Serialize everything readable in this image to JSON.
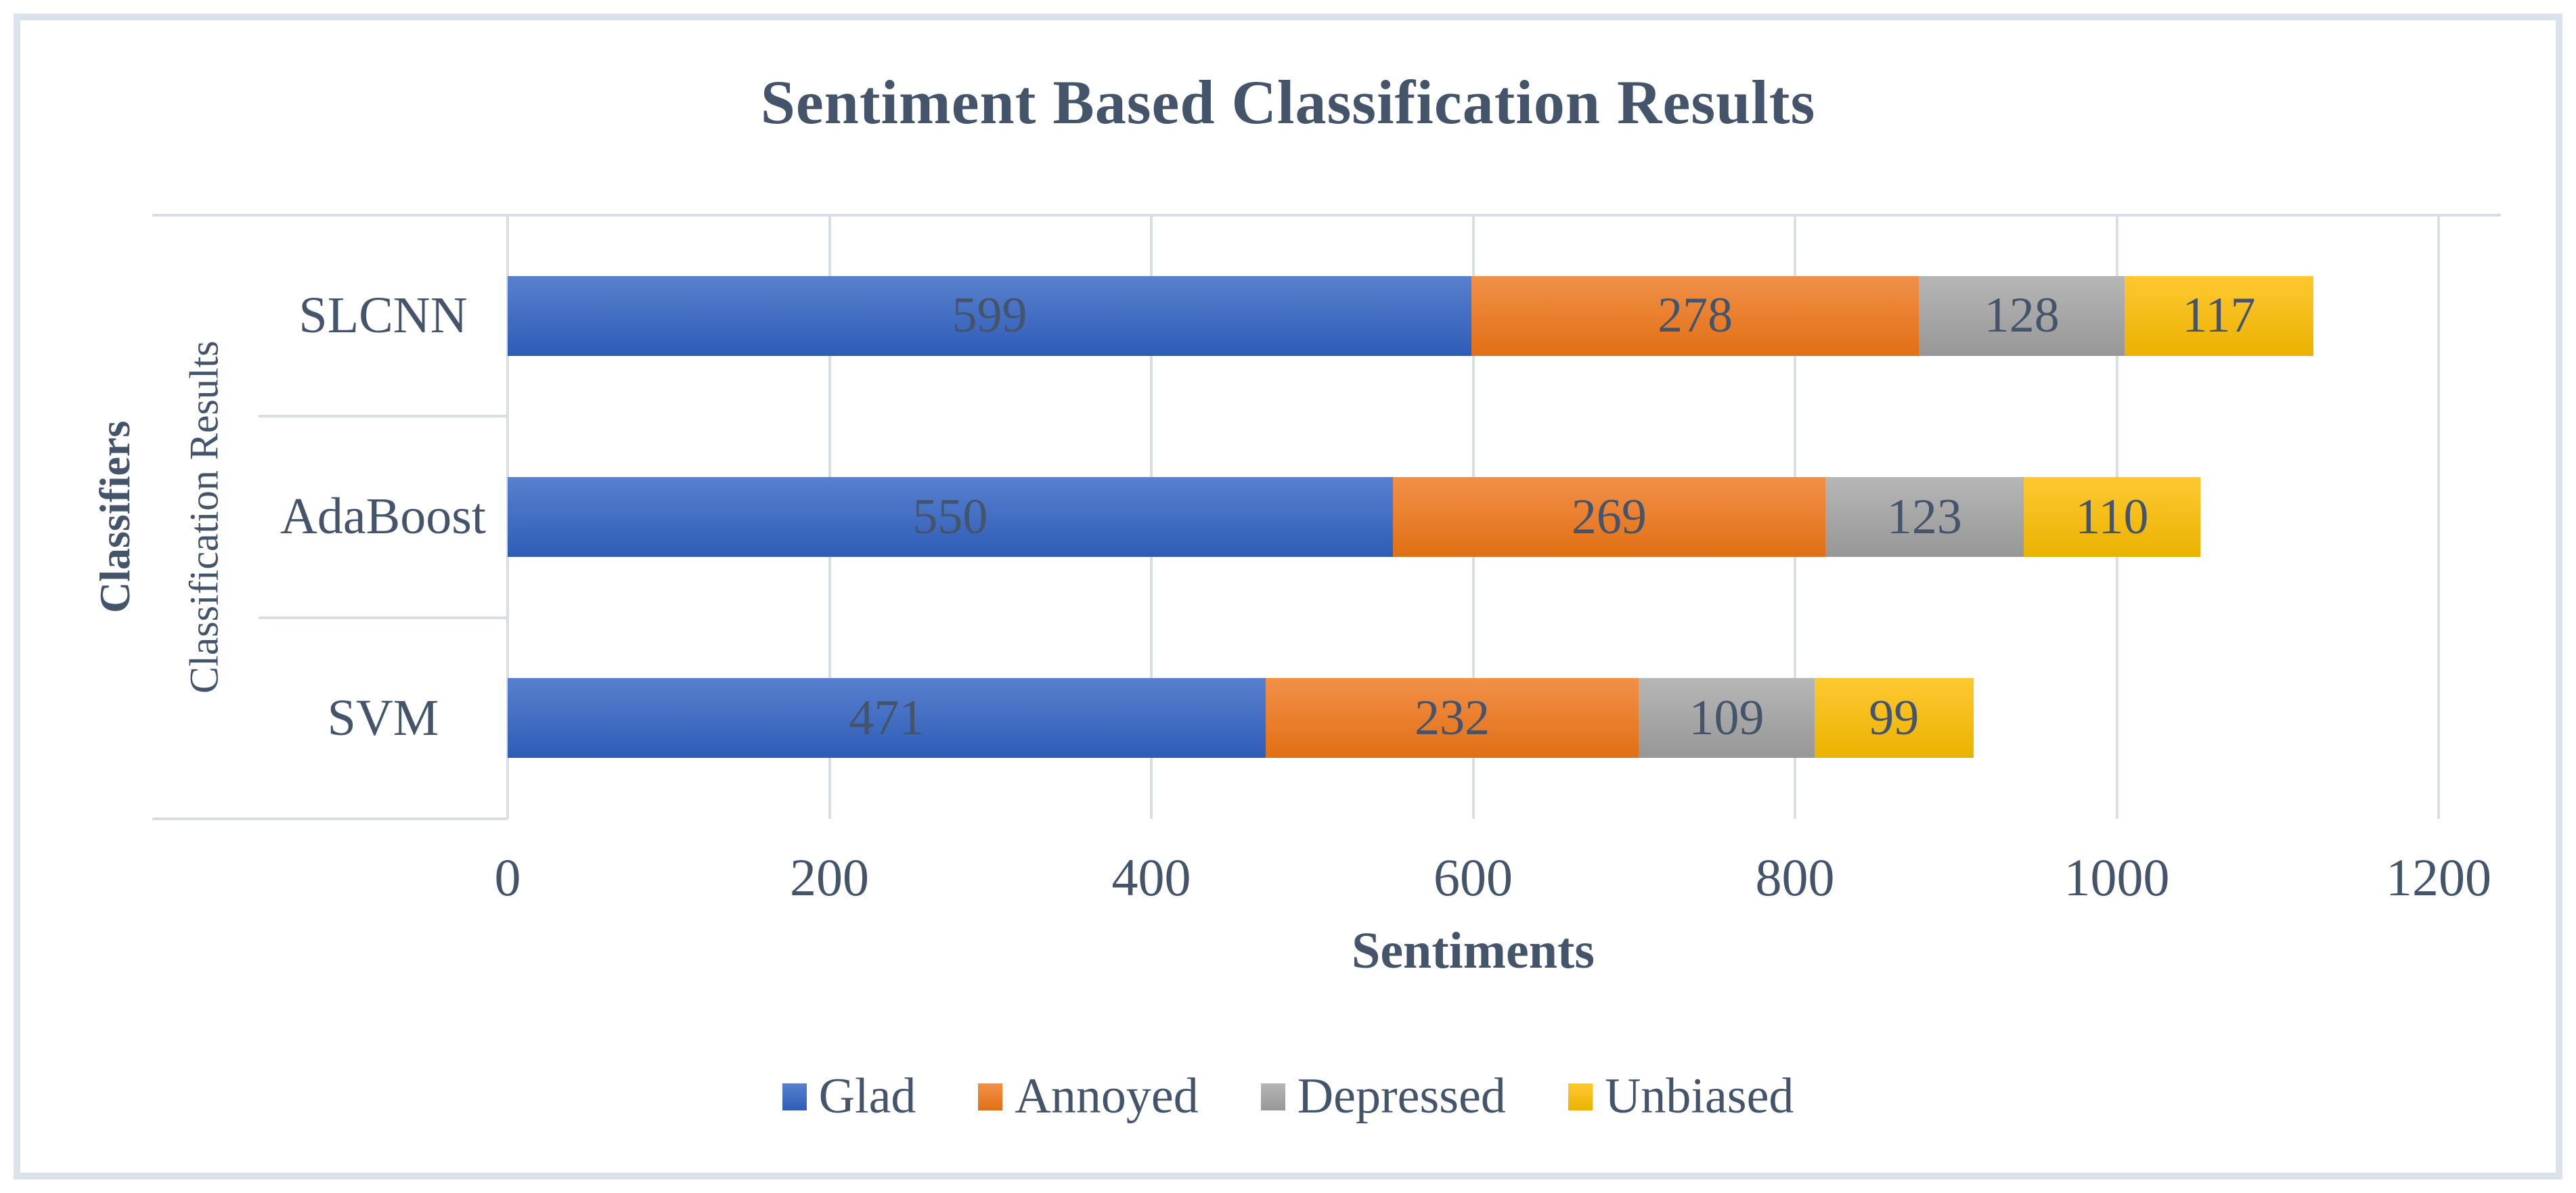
{
  "chart_data": {
    "type": "bar",
    "orientation": "horizontal",
    "stacked": true,
    "title": "Sentiment Based Classification Results",
    "categories": [
      "SLCNN",
      "AdaBoost",
      "SVM"
    ],
    "series": [
      {
        "name": "Glad",
        "values": [
          599,
          550,
          471
        ],
        "color_top": "#5880CE",
        "color_bottom": "#2E5CB6"
      },
      {
        "name": "Annoyed",
        "values": [
          278,
          269,
          232
        ],
        "color_top": "#F19049",
        "color_bottom": "#E16F14"
      },
      {
        "name": "Depressed",
        "values": [
          128,
          123,
          109
        ],
        "color_top": "#B6B6B6",
        "color_bottom": "#979797"
      },
      {
        "name": "Unbiased",
        "values": [
          117,
          110,
          99
        ],
        "color_top": "#FFC832",
        "color_bottom": "#EAB200"
      }
    ],
    "xlabel": "Sentiments",
    "ylabel": "Classifiers",
    "category_group_label": "Classification Results",
    "xlim": [
      0,
      1200
    ],
    "xticks": [
      "0",
      "200",
      "400",
      "600",
      "800",
      "1000",
      "1200"
    ],
    "grid": "vertical-only",
    "legend_position": "bottom",
    "data_labels": "center",
    "colors": {
      "text": "#44546A",
      "gridline": "#D9DDE4",
      "frame_border": "#DCE2EB",
      "background": "#FFFFFF"
    }
  }
}
